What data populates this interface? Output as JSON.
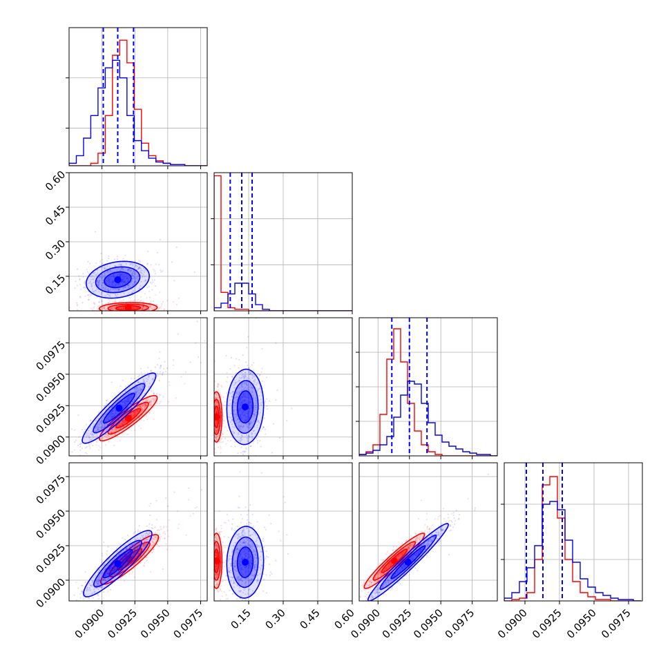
{
  "chart_data": {
    "type": "corner",
    "grid": true,
    "series": [
      {
        "name": "",
        "color": "#0000ff"
      },
      {
        "name": "",
        "color": "#ff0000"
      }
    ],
    "params": [
      {
        "range": [
          0.0875,
          0.098
        ],
        "ticks": [
          0.09,
          0.0925,
          0.095,
          0.0975
        ],
        "tick_labels": [
          "0.0900",
          "0.0925",
          "0.0950",
          "0.0975"
        ]
      },
      {
        "range": [
          0.0,
          0.6
        ],
        "ticks": [
          0.15,
          0.3,
          0.45,
          0.6
        ],
        "tick_labels": [
          "0.15",
          "0.30",
          "0.45",
          "0.60"
        ]
      },
      {
        "range": [
          0.0885,
          0.0995
        ],
        "ticks": [
          0.09,
          0.0925,
          0.095,
          0.0975
        ],
        "tick_labels": [
          "0.0900",
          "0.0925",
          "0.0950",
          "0.0975"
        ]
      },
      {
        "range": [
          0.0885,
          0.0985
        ],
        "ticks": [
          0.09,
          0.0925,
          0.095,
          0.0975
        ],
        "tick_labels": [
          "0.0900",
          "0.0925",
          "0.0950",
          "0.0975"
        ]
      }
    ],
    "quantiles_blue": [
      [
        0.0901,
        0.0912,
        0.0924
      ],
      [
        0.07,
        0.12,
        0.165
      ],
      [
        0.0911,
        0.0925,
        0.0939
      ],
      [
        0.0901,
        0.0913,
        0.0927
      ]
    ],
    "histograms": [
      {
        "bin_start": 0.0875,
        "bin_width": 0.00055,
        "blue": [
          2,
          8,
          22,
          40,
          62,
          78,
          84,
          70,
          40,
          20,
          12,
          6,
          3,
          2,
          1,
          1,
          0,
          0,
          0,
          0
        ],
        "red": [
          0,
          0,
          0,
          2,
          10,
          40,
          88,
          100,
          82,
          45,
          18,
          8,
          4,
          2,
          1,
          1,
          0,
          0,
          0,
          0
        ],
        "hist_ylim": [
          0,
          110
        ],
        "hist_grid": [
          30,
          70
        ]
      },
      {
        "bin_start": 0.0,
        "bin_width": 0.03,
        "blue": [
          2,
          5,
          11,
          18,
          18,
          11,
          4,
          1,
          0,
          0,
          0,
          0,
          0,
          0,
          0,
          0,
          0,
          0,
          0,
          0
        ],
        "red": [
          88,
          12,
          2,
          1,
          1,
          0,
          0,
          0,
          0,
          0,
          0,
          0,
          0,
          0,
          0,
          0,
          0,
          0,
          0,
          0
        ],
        "hist_ylim": [
          0,
          90
        ],
        "hist_grid": [
          30,
          60
        ]
      },
      {
        "bin_start": 0.0885,
        "bin_width": 0.00055,
        "blue": [
          1,
          2,
          4,
          8,
          14,
          28,
          44,
          54,
          52,
          38,
          24,
          15,
          10,
          7,
          5,
          3,
          2,
          1,
          1,
          0
        ],
        "red": [
          1,
          3,
          8,
          30,
          70,
          92,
          68,
          38,
          18,
          8,
          3,
          1,
          0,
          0,
          0,
          0,
          0,
          0,
          0,
          0
        ],
        "hist_ylim": [
          0,
          100
        ],
        "hist_grid": [
          25,
          50,
          75
        ]
      },
      {
        "bin_start": 0.0885,
        "bin_width": 0.00055,
        "blue": [
          2,
          6,
          14,
          24,
          40,
          70,
          72,
          66,
          44,
          28,
          16,
          10,
          6,
          4,
          2,
          1,
          1,
          0
        ],
        "red": [
          0,
          1,
          2,
          6,
          30,
          84,
          90,
          60,
          30,
          14,
          6,
          3,
          1,
          1,
          0,
          0,
          0,
          0
        ],
        "hist_ylim": [
          0,
          100
        ],
        "hist_grid": [
          30,
          70
        ]
      }
    ],
    "pairs": [
      {
        "row": 1,
        "col": 0,
        "blue": {
          "mx": 0.0912,
          "my": 0.135,
          "sx": 0.0012,
          "sy": 0.04,
          "rho": 0.2
        },
        "red": {
          "mx": 0.092,
          "my": 0.012,
          "sx": 0.0011,
          "sy": 0.012,
          "rho": 0.1
        }
      },
      {
        "row": 2,
        "col": 0,
        "blue": {
          "mx": 0.0913,
          "my": 0.0923,
          "sx": 0.0014,
          "sy": 0.0014,
          "rho": 0.92
        },
        "red": {
          "mx": 0.092,
          "my": 0.0915,
          "sx": 0.0011,
          "sy": 0.0009,
          "rho": 0.9
        }
      },
      {
        "row": 2,
        "col": 1,
        "blue": {
          "mx": 0.135,
          "my": 0.0924,
          "sx": 0.04,
          "sy": 0.0015,
          "rho": 0.05
        },
        "red": {
          "mx": 0.01,
          "my": 0.0916,
          "sx": 0.012,
          "sy": 0.001,
          "rho": 0.0
        }
      },
      {
        "row": 3,
        "col": 0,
        "blue": {
          "mx": 0.0912,
          "my": 0.0912,
          "sx": 0.0013,
          "sy": 0.0012,
          "rho": 0.9
        },
        "red": {
          "mx": 0.0921,
          "my": 0.0915,
          "sx": 0.0011,
          "sy": 0.0009,
          "rho": 0.9
        }
      },
      {
        "row": 3,
        "col": 1,
        "blue": {
          "mx": 0.135,
          "my": 0.0913,
          "sx": 0.04,
          "sy": 0.0013,
          "rho": 0.05
        },
        "red": {
          "mx": 0.01,
          "my": 0.0914,
          "sx": 0.012,
          "sy": 0.001,
          "rho": 0.0
        }
      },
      {
        "row": 3,
        "col": 2,
        "blue": {
          "mx": 0.0924,
          "my": 0.0913,
          "sx": 0.0016,
          "sy": 0.0014,
          "rho": 0.97
        },
        "red": {
          "mx": 0.0913,
          "my": 0.0914,
          "sx": 0.0012,
          "sy": 0.001,
          "rho": 0.95
        }
      }
    ]
  }
}
